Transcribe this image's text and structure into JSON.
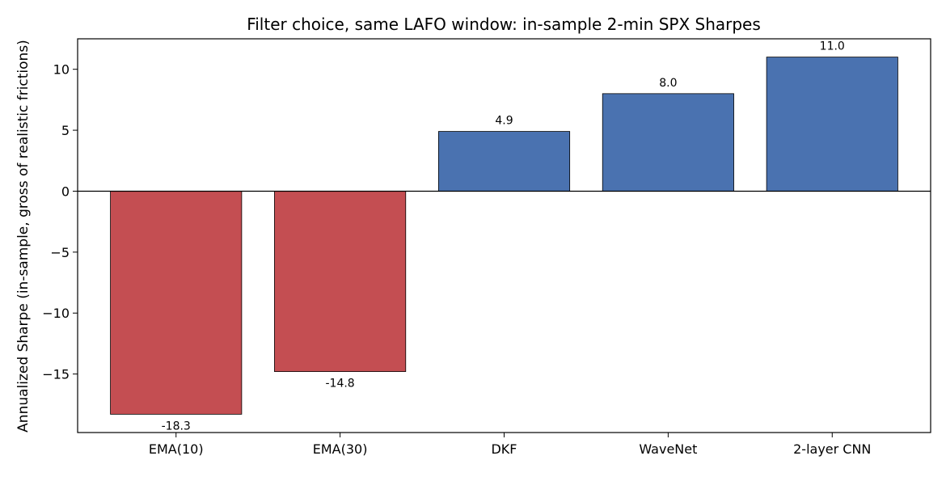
{
  "chart_data": {
    "type": "bar",
    "title": "Filter choice, same LAFO window: in-sample 2-min SPX Sharpes",
    "xlabel": "",
    "ylabel": "Annualized Sharpe (in-sample, gross of realistic frictions)",
    "categories": [
      "EMA(10)",
      "EMA(30)",
      "DKF",
      "WaveNet",
      "2-layer CNN"
    ],
    "values": [
      -18.3,
      -14.8,
      4.9,
      8.0,
      11.0
    ],
    "value_labels": [
      "-18.3",
      "-14.8",
      "4.9",
      "8.0",
      "11.0"
    ],
    "ylim": [
      -19.8,
      12.5
    ],
    "yticks": [
      10,
      5,
      0,
      -5,
      -10,
      -15
    ],
    "ytick_labels": [
      "10",
      "5",
      "0",
      "−5",
      "−10",
      "−15"
    ],
    "grid": false,
    "legend": "none",
    "colors": {
      "positive": "#4a72b0",
      "negative": "#c44e52",
      "edge": "#000000"
    }
  }
}
